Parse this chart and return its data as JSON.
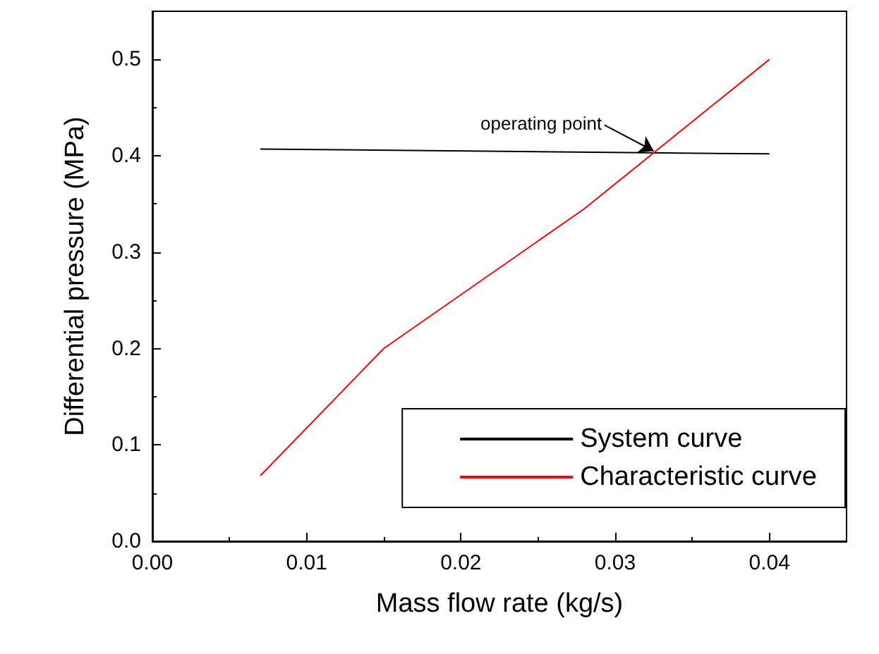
{
  "chart_data": {
    "type": "line",
    "xlabel": "Mass flow rate (kg/s)",
    "ylabel": "Differential pressure (MPa)",
    "xlim": [
      0,
      0.045
    ],
    "xticks": [
      {
        "value": 0,
        "label": "0.00"
      },
      0.01,
      0.02,
      0.03,
      0.04
    ],
    "ylim": [
      0,
      0.55
    ],
    "yticks": [
      {
        "value": 0,
        "label": "0.0"
      },
      0.1,
      0.2,
      0.3,
      0.4,
      0.5
    ],
    "series": [
      {
        "name": "System curve",
        "color": "#000000",
        "x": [
          0.007,
          0.04
        ],
        "values": [
          0.407,
          0.402
        ]
      },
      {
        "name": "Characteristic curve",
        "color": "#ff0000",
        "x": [
          0.007,
          0.015,
          0.028,
          0.04
        ],
        "values": [
          0.068,
          0.2,
          0.345,
          0.5
        ]
      }
    ],
    "annotations": [
      {
        "text": "operating point",
        "x": 0.0325,
        "y": 0.405
      }
    ],
    "legend": "bottom right",
    "grid": false,
    "marker": "none",
    "line_style": "solid"
  }
}
